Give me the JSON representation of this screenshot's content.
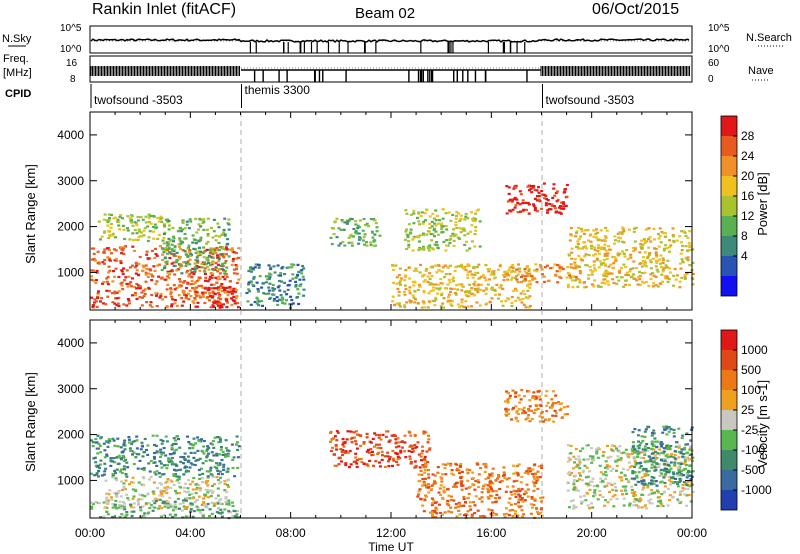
{
  "header": {
    "station": "Rankin Inlet (fitACF)",
    "beam": "Beam 02",
    "date": "06/Oct/2015"
  },
  "summary": {
    "nsky_label": "N.Sky",
    "freq_label_1": "Freq.",
    "freq_label_2": "[MHz]",
    "cpid_label": "CPID",
    "nsky_ticks": [
      "10^5",
      "10^0"
    ],
    "freq_ticks": [
      "16",
      "8"
    ],
    "nsearch_label": "N.Search",
    "nave_label": "Nave",
    "nsearch_ticks": [
      "10^5",
      "10^0"
    ],
    "nave_ticks": [
      "60",
      "0"
    ],
    "cpid_segments": [
      {
        "label": "twofsound -3503",
        "start_hour": 0,
        "end_hour": 6
      },
      {
        "label": "themis 3300",
        "start_hour": 6,
        "end_hour": 18
      },
      {
        "label": "twofsound -3503",
        "start_hour": 18,
        "end_hour": 24
      }
    ]
  },
  "axes": {
    "ylabel": "Slant Range [km]",
    "xlabel": "Time UT",
    "y_ticks": [
      "1000",
      "2000",
      "3000",
      "4000"
    ],
    "x_ticks": [
      "00:00",
      "04:00",
      "08:00",
      "12:00",
      "16:00",
      "20:00",
      "00:00"
    ]
  },
  "power_scale": {
    "label": "Power [dB]",
    "ticks": [
      "4",
      "8",
      "12",
      "16",
      "20",
      "24",
      "28"
    ],
    "colors": [
      "#1010f0",
      "#2855b5",
      "#3d8a7a",
      "#58b050",
      "#a8c230",
      "#f0c020",
      "#f09028",
      "#e85a20",
      "#e01818"
    ]
  },
  "velocity_scale": {
    "label": "Velocity [m s-1]",
    "ticks": [
      "1000",
      "500",
      "100",
      "25",
      "-25",
      "-100",
      "-500",
      "-1000"
    ],
    "colors": [
      "#2040b0",
      "#3a6aa0",
      "#3e8a6a",
      "#58b850",
      "#c8c8c0",
      "#f0a020",
      "#ec7818",
      "#e04818",
      "#e01818"
    ]
  },
  "chart_data": {
    "type": "heatmap",
    "x_range_hours": [
      0,
      24
    ],
    "y_range_km": [
      180,
      4500
    ],
    "power_blobs": [
      {
        "t0": 0.0,
        "t1": 5.9,
        "r0": 250,
        "r1": 1600,
        "level": 7
      },
      {
        "t0": 0.3,
        "t1": 3.0,
        "r0": 1700,
        "r1": 2300,
        "level": 4
      },
      {
        "t0": 2.8,
        "t1": 5.5,
        "r0": 1000,
        "r1": 2200,
        "level": 3
      },
      {
        "t0": 4.5,
        "t1": 5.9,
        "r0": 250,
        "r1": 700,
        "level": 8
      },
      {
        "t0": 6.2,
        "t1": 8.5,
        "r0": 250,
        "r1": 1200,
        "level": 2
      },
      {
        "t0": 9.5,
        "t1": 11.5,
        "r0": 1600,
        "r1": 2200,
        "level": 3
      },
      {
        "t0": 12.5,
        "t1": 15.5,
        "r0": 1500,
        "r1": 2400,
        "level": 4
      },
      {
        "t0": 12.0,
        "t1": 17.5,
        "r0": 250,
        "r1": 1200,
        "level": 5
      },
      {
        "t0": 16.5,
        "t1": 19.0,
        "r0": 2300,
        "r1": 3000,
        "level": 8
      },
      {
        "t0": 16.5,
        "t1": 19.5,
        "r0": 800,
        "r1": 1200,
        "level": 6
      },
      {
        "t0": 19.0,
        "t1": 24.0,
        "r0": 700,
        "r1": 2000,
        "level": 5
      }
    ],
    "velocity_blobs": [
      {
        "t0": 0.5,
        "t1": 5.5,
        "r0": 400,
        "r1": 1100,
        "level": 4
      },
      {
        "t0": 0.0,
        "t1": 5.9,
        "r0": 1100,
        "r1": 2000,
        "level": 2
      },
      {
        "t0": 0.0,
        "t1": 5.9,
        "r0": 200,
        "r1": 600,
        "level": 3
      },
      {
        "t0": 9.5,
        "t1": 13.5,
        "r0": 1300,
        "r1": 2100,
        "level": 7
      },
      {
        "t0": 13.0,
        "t1": 18.0,
        "r0": 200,
        "r1": 1400,
        "level": 6
      },
      {
        "t0": 16.5,
        "t1": 19.0,
        "r0": 2300,
        "r1": 3000,
        "level": 6
      },
      {
        "t0": 19.0,
        "t1": 24.0,
        "r0": 400,
        "r1": 1800,
        "level": 4
      },
      {
        "t0": 21.5,
        "t1": 24.0,
        "r0": 900,
        "r1": 2200,
        "level": 2
      }
    ]
  }
}
